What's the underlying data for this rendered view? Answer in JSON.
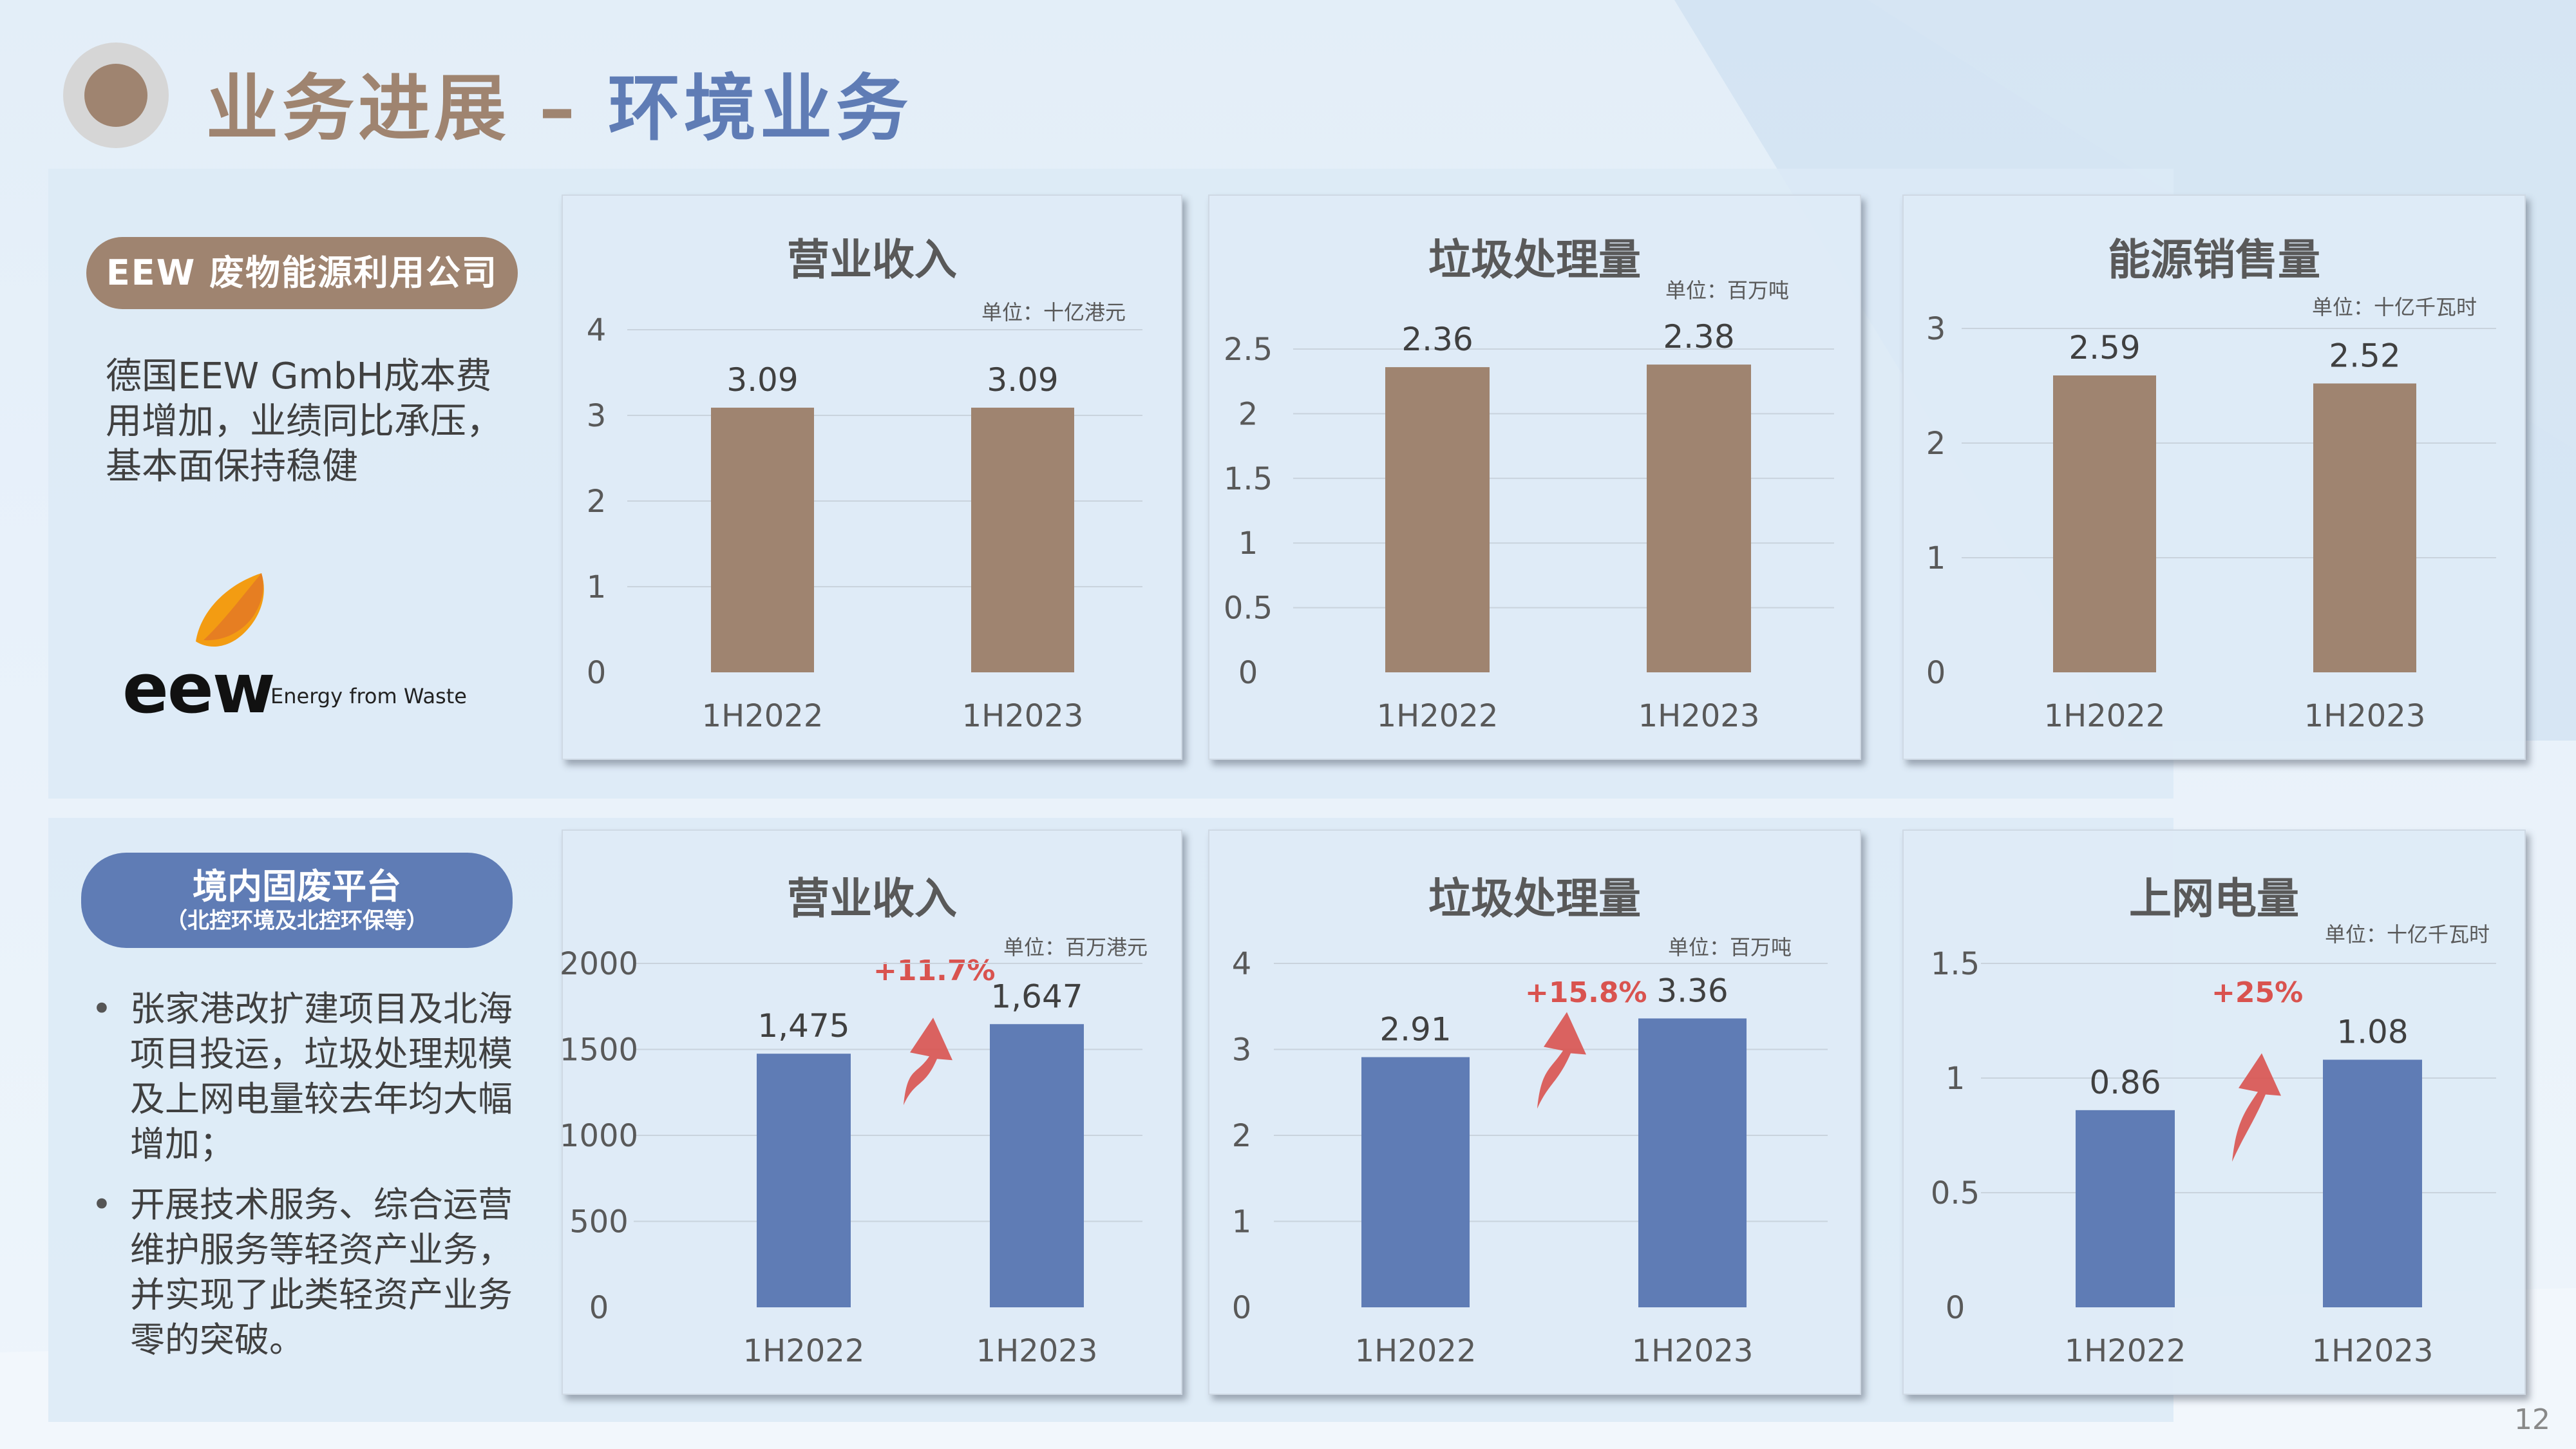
{
  "header": {
    "title_part1": "业务进展 – ",
    "title_part2": "环境业务"
  },
  "eew_section": {
    "badge": "EEW 废物能源利用公司",
    "description_lines": [
      "德国EEW GmbH成本费",
      "用增加，业绩同比承压，",
      "基本面保持稳健"
    ],
    "logo_word": "eew",
    "logo_tagline": "Energy from Waste"
  },
  "domestic_section": {
    "badge": "境内固废平台",
    "badge_sub": "（北控环境及北控环保等）",
    "bullet_marker": "•",
    "bullets": [
      "张家港改扩建项目及北海项目投运，垃圾处理规模及上网电量较去年均大幅增加；",
      "开展技术服务、综合运营维护服务等轻资产业务，并实现了此类轻资产业务零的突破。"
    ]
  },
  "page_number": "12",
  "colors": {
    "brown": "#9f8470",
    "blue": "#5f7cb5",
    "growth_red": "#d9534f"
  },
  "chart_data": [
    {
      "type": "bar",
      "title": "营业收入",
      "unit": "单位：十亿港元",
      "categories": [
        "1H2022",
        "1H2023"
      ],
      "values": [
        3.09,
        3.09
      ],
      "labels": [
        "3.09",
        "3.09"
      ],
      "yticks": [
        "0",
        "1",
        "2",
        "3",
        "4"
      ],
      "ylim": [
        0,
        4
      ],
      "color": "#9f8470"
    },
    {
      "type": "bar",
      "title": "垃圾处理量",
      "unit": "单位：百万吨",
      "categories": [
        "1H2022",
        "1H2023"
      ],
      "values": [
        2.36,
        2.38
      ],
      "labels": [
        "2.36",
        "2.38"
      ],
      "yticks": [
        "0",
        "0.5",
        "1",
        "1.5",
        "2",
        "2.5"
      ],
      "ylim": [
        0,
        2.5
      ],
      "color": "#9f8470"
    },
    {
      "type": "bar",
      "title": "能源销售量",
      "unit": "单位：十亿千瓦时",
      "categories": [
        "1H2022",
        "1H2023"
      ],
      "values": [
        2.59,
        2.52
      ],
      "labels": [
        "2.59",
        "2.52"
      ],
      "yticks": [
        "0",
        "1",
        "2",
        "3"
      ],
      "ylim": [
        0,
        3
      ],
      "color": "#9f8470"
    },
    {
      "type": "bar",
      "title": "营业收入",
      "unit": "单位：百万港元",
      "categories": [
        "1H2022",
        "1H2023"
      ],
      "values": [
        1475,
        1647
      ],
      "labels": [
        "1,475",
        "1,647"
      ],
      "yticks": [
        "0",
        "500",
        "1000",
        "1500",
        "2000"
      ],
      "ylim": [
        0,
        2000
      ],
      "color": "#5f7cb5",
      "growth": "+11.7%"
    },
    {
      "type": "bar",
      "title": "垃圾处理量",
      "unit": "单位：百万吨",
      "categories": [
        "1H2022",
        "1H2023"
      ],
      "values": [
        2.91,
        3.36
      ],
      "labels": [
        "2.91",
        "3.36"
      ],
      "yticks": [
        "0",
        "1",
        "2",
        "3",
        "4"
      ],
      "ylim": [
        0,
        4
      ],
      "color": "#5f7cb5",
      "growth": "+15.8%"
    },
    {
      "type": "bar",
      "title": "上网电量",
      "unit": "单位：十亿千瓦时",
      "categories": [
        "1H2022",
        "1H2023"
      ],
      "values": [
        0.86,
        1.08
      ],
      "labels": [
        "0.86",
        "1.08"
      ],
      "yticks": [
        "0",
        "0.5",
        "1",
        "1.5"
      ],
      "ylim": [
        0,
        1.5
      ],
      "color": "#5f7cb5",
      "growth": "+25%"
    }
  ]
}
